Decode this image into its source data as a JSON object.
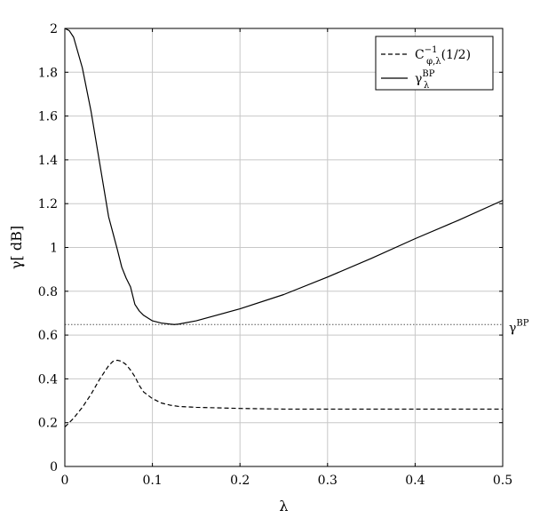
{
  "chart_data": {
    "type": "line",
    "xlabel": "λ",
    "ylabel": "γ[ dB]",
    "xlim": [
      0,
      0.5
    ],
    "ylim": [
      0,
      2
    ],
    "grid": true,
    "legend_position": "top-right",
    "xticks": [
      "0",
      "0.1",
      "0.2",
      "0.3",
      "0.4",
      "0.5"
    ],
    "yticks": [
      "0",
      "0.2",
      "0.4",
      "0.6",
      "0.8",
      "1",
      "1.2",
      "1.4",
      "1.6",
      "1.8",
      "2"
    ],
    "series": [
      {
        "name": "C^{-1}_{φ,λ}(1/2)",
        "legend_main": "C",
        "legend_sup": "−1",
        "legend_sub": "φ,λ",
        "legend_tail": "(1/2)",
        "style": "dashed",
        "color": "#000000",
        "x": [
          0,
          0.01,
          0.02,
          0.03,
          0.04,
          0.05,
          0.055,
          0.06,
          0.065,
          0.07,
          0.075,
          0.08,
          0.085,
          0.09,
          0.1,
          0.11,
          0.12,
          0.13,
          0.15,
          0.2,
          0.25,
          0.3,
          0.35,
          0.4,
          0.45,
          0.5
        ],
        "y": [
          0.18,
          0.22,
          0.27,
          0.33,
          0.4,
          0.46,
          0.48,
          0.485,
          0.48,
          0.465,
          0.44,
          0.41,
          0.37,
          0.34,
          0.31,
          0.29,
          0.28,
          0.274,
          0.27,
          0.265,
          0.262,
          0.262,
          0.262,
          0.262,
          0.262,
          0.262
        ]
      },
      {
        "name": "γ^{BP}_λ",
        "legend_main": "γ",
        "legend_sup": "BP",
        "legend_sub": "λ",
        "legend_tail": "",
        "style": "solid",
        "color": "#000000",
        "x": [
          0,
          0.005,
          0.01,
          0.02,
          0.03,
          0.04,
          0.05,
          0.06,
          0.065,
          0.07,
          0.075,
          0.08,
          0.085,
          0.09,
          0.1,
          0.11,
          0.12,
          0.125,
          0.13,
          0.15,
          0.2,
          0.25,
          0.3,
          0.35,
          0.4,
          0.45,
          0.5
        ],
        "y": [
          2.0,
          1.99,
          1.96,
          1.82,
          1.62,
          1.38,
          1.14,
          0.99,
          0.91,
          0.86,
          0.82,
          0.74,
          0.71,
          0.69,
          0.665,
          0.655,
          0.65,
          0.648,
          0.65,
          0.665,
          0.72,
          0.785,
          0.865,
          0.95,
          1.04,
          1.125,
          1.215
        ]
      }
    ],
    "reference_lines": [
      {
        "y": 0.648,
        "style": "dotted",
        "label_main": "γ",
        "label_sup": "BP"
      }
    ]
  }
}
